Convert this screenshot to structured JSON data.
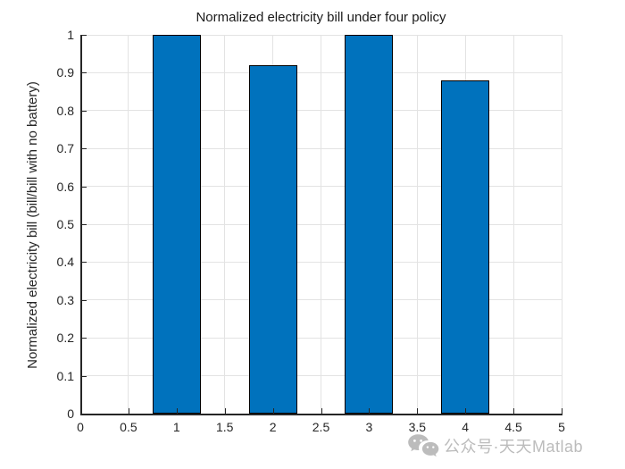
{
  "chart_data": {
    "type": "bar",
    "title": "Normalized electricity bill under four policy",
    "xlabel": "",
    "ylabel": "Normalized electricity bill (bill/bill with no battery)",
    "x": [
      1,
      2,
      3,
      4
    ],
    "values": [
      1,
      0.92,
      1,
      0.88
    ],
    "bar_width": 0.5,
    "xlim": [
      0,
      5
    ],
    "ylim": [
      0,
      1
    ],
    "xticks": [
      0,
      0.5,
      1,
      1.5,
      2,
      2.5,
      3,
      3.5,
      4,
      4.5,
      5
    ],
    "xtick_labels": [
      "0",
      "0.5",
      "1",
      "1.5",
      "2",
      "2.5",
      "3",
      "3.5",
      "4",
      "4.5",
      "5"
    ],
    "yticks": [
      0,
      0.1,
      0.2,
      0.3,
      0.4,
      0.5,
      0.6,
      0.7,
      0.8,
      0.9,
      1
    ],
    "ytick_labels": [
      "0",
      "0.1",
      "0.2",
      "0.3",
      "0.4",
      "0.5",
      "0.6",
      "0.7",
      "0.8",
      "0.9",
      "1"
    ],
    "grid": true,
    "legend_position": "none",
    "colors": {
      "bar_fill": "#0072BD",
      "bar_edge": "#000000",
      "grid": "#E3E3E3",
      "axis": "#262626",
      "tick_text": "#262626",
      "title_text": "#1A1A1A",
      "background": "#FFFFFF"
    }
  },
  "watermark": {
    "icon": "wechat-icon",
    "text": "公众号·天天Matlab",
    "color": "#BCBCBC"
  }
}
